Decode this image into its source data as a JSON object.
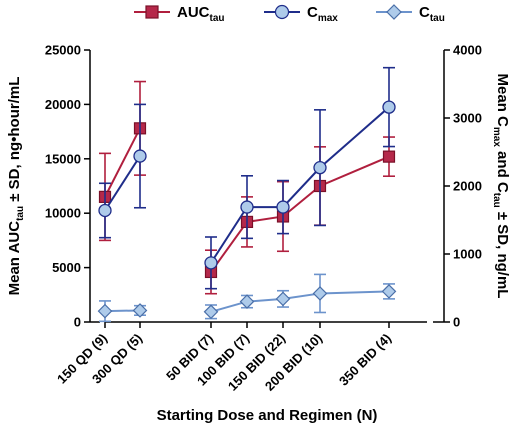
{
  "chart_data": {
    "type": "line",
    "categories": [
      "150 QD (9)",
      "300 QD (5)",
      "50 BID (7)",
      "100 BID (7)",
      "150 BID (22)",
      "200 BID (10)",
      "350 BID (4)"
    ],
    "xlabel": "Starting Dose and Regimen (N)",
    "ylabel_left": {
      "main": "Mean AUC",
      "sub": "tau",
      "tail": " ± SD, ng•hour/mL"
    },
    "ylabel_right": {
      "main1": "Mean C",
      "sub1": "max",
      "mid": " and C",
      "sub2": "tau",
      "tail": " ± SD, ng/mL"
    },
    "ylim_left": [
      0,
      25000
    ],
    "ylim_right": [
      0,
      4000
    ],
    "yticks_left": [
      "0",
      "5000",
      "10000",
      "15000",
      "20000",
      "25000"
    ],
    "yticks_right": [
      "0",
      "1000",
      "2000",
      "3000",
      "4000"
    ],
    "legend_position": "top-center",
    "series": [
      {
        "name": {
          "main": "AUC",
          "sub": "tau"
        },
        "axis": "left",
        "marker": "square",
        "color": "#b5284a",
        "line_color": "#b01f3e",
        "groups": [
          [
            0,
            1
          ],
          [
            2,
            3,
            4,
            5,
            6
          ]
        ],
        "values": [
          11500,
          17800,
          4600,
          9200,
          9700,
          12500,
          15200
        ],
        "sd": [
          4000,
          4300,
          2000,
          2300,
          3200,
          3600,
          1800
        ]
      },
      {
        "name": {
          "main": "C",
          "sub": "max"
        },
        "axis": "right",
        "marker": "circle",
        "color": "#aecbea",
        "line_color": "#1f2d8a",
        "groups": [
          [
            0,
            1
          ],
          [
            2,
            3,
            4,
            5,
            6
          ]
        ],
        "values": [
          1640,
          2440,
          870,
          1690,
          1690,
          2270,
          3160
        ],
        "sd": [
          400,
          760,
          380,
          460,
          390,
          850,
          580
        ]
      },
      {
        "name": {
          "main": "C",
          "sub": "tau"
        },
        "axis": "right",
        "marker": "diamond",
        "color": "#aecbea",
        "line_color": "#6c93cc",
        "groups": [
          [
            0,
            1
          ],
          [
            2,
            3,
            4,
            5,
            6
          ]
        ],
        "values": [
          160,
          170,
          150,
          300,
          340,
          420,
          450
        ],
        "sd": [
          150,
          70,
          100,
          90,
          120,
          280,
          110
        ]
      }
    ]
  }
}
